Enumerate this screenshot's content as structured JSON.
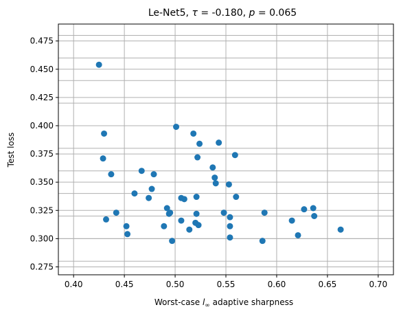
{
  "chart_data": {
    "type": "scatter",
    "title_parts": {
      "model": "Le-Net5, ",
      "tau_symbol": "τ",
      "tau_value": " = -0.180, ",
      "p_symbol": "p",
      "p_value": " = 0.065"
    },
    "xlabel_parts": {
      "prefix": "Worst-case ",
      "l_symbol": "l",
      "sub_symbol": "∞",
      "suffix": " adaptive sharpness"
    },
    "ylabel": "Test loss",
    "xlim": [
      0.385,
      0.715
    ],
    "ylim": [
      0.268,
      0.49
    ],
    "x_ticks": [
      0.4,
      0.45,
      0.5,
      0.55,
      0.6,
      0.65,
      0.7
    ],
    "x_tick_labels": [
      "0.40",
      "0.45",
      "0.50",
      "0.55",
      "0.60",
      "0.65",
      "0.70"
    ],
    "y_ticks": [
      0.275,
      0.3,
      0.325,
      0.35,
      0.375,
      0.4,
      0.425,
      0.45,
      0.475
    ],
    "y_tick_labels": [
      "0.275",
      "0.300",
      "0.325",
      "0.350",
      "0.375",
      "0.400",
      "0.425",
      "0.450",
      "0.475"
    ],
    "grid": true,
    "extra_h_gridlines": [
      0.28,
      0.3,
      0.32,
      0.34,
      0.36,
      0.38,
      0.4,
      0.42,
      0.44,
      0.46,
      0.48
    ],
    "marker_color": "#1f77b4",
    "points": [
      [
        0.425,
        0.454
      ],
      [
        0.43,
        0.393
      ],
      [
        0.429,
        0.371
      ],
      [
        0.437,
        0.357
      ],
      [
        0.432,
        0.317
      ],
      [
        0.442,
        0.323
      ],
      [
        0.452,
        0.311
      ],
      [
        0.453,
        0.304
      ],
      [
        0.46,
        0.34
      ],
      [
        0.467,
        0.36
      ],
      [
        0.474,
        0.336
      ],
      [
        0.477,
        0.344
      ],
      [
        0.479,
        0.357
      ],
      [
        0.489,
        0.311
      ],
      [
        0.492,
        0.327
      ],
      [
        0.494,
        0.322
      ],
      [
        0.495,
        0.323
      ],
      [
        0.497,
        0.298
      ],
      [
        0.501,
        0.399
      ],
      [
        0.506,
        0.316
      ],
      [
        0.506,
        0.336
      ],
      [
        0.509,
        0.335
      ],
      [
        0.514,
        0.308
      ],
      [
        0.518,
        0.393
      ],
      [
        0.52,
        0.314
      ],
      [
        0.521,
        0.337
      ],
      [
        0.521,
        0.322
      ],
      [
        0.522,
        0.372
      ],
      [
        0.523,
        0.312
      ],
      [
        0.524,
        0.384
      ],
      [
        0.537,
        0.363
      ],
      [
        0.539,
        0.354
      ],
      [
        0.54,
        0.349
      ],
      [
        0.543,
        0.385
      ],
      [
        0.548,
        0.323
      ],
      [
        0.553,
        0.348
      ],
      [
        0.554,
        0.319
      ],
      [
        0.554,
        0.311
      ],
      [
        0.554,
        0.301
      ],
      [
        0.559,
        0.374
      ],
      [
        0.56,
        0.337
      ],
      [
        0.586,
        0.298
      ],
      [
        0.588,
        0.323
      ],
      [
        0.615,
        0.316
      ],
      [
        0.621,
        0.303
      ],
      [
        0.627,
        0.326
      ],
      [
        0.636,
        0.327
      ],
      [
        0.637,
        0.32
      ],
      [
        0.663,
        0.308
      ]
    ]
  }
}
